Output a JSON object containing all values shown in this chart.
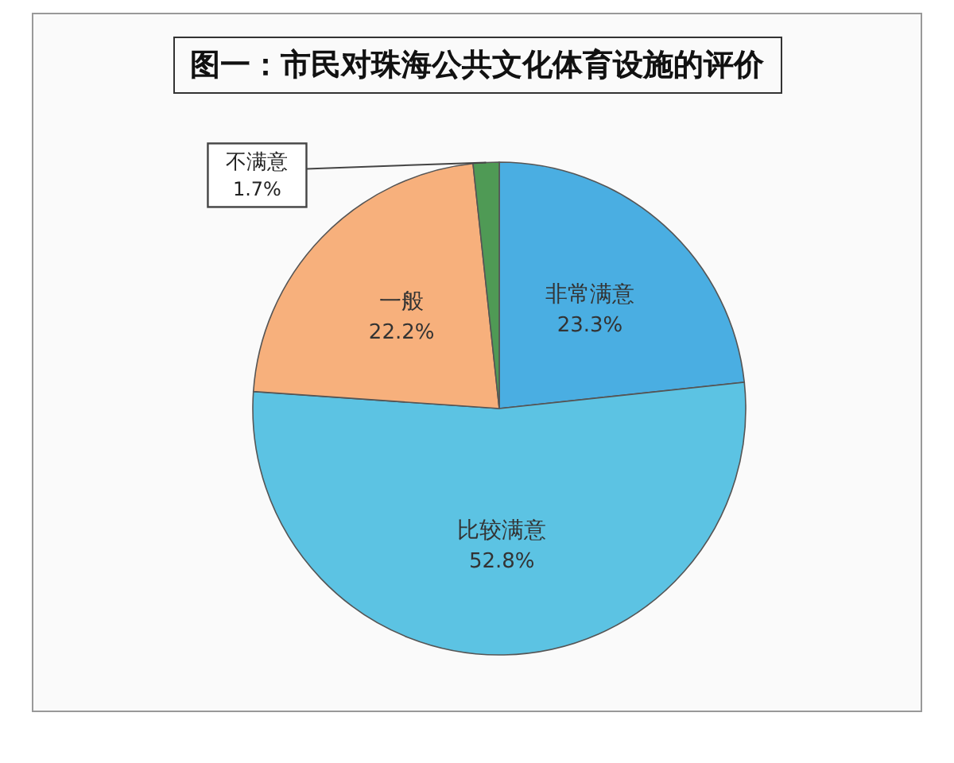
{
  "chart_data": {
    "type": "pie",
    "title": "图一：市民对珠海公共文化体育设施的评价",
    "categories": [
      "非常满意",
      "比较满意",
      "一般",
      "不满意"
    ],
    "values": [
      23.3,
      52.8,
      22.2,
      1.7
    ],
    "value_labels": [
      "23.3%",
      "52.8%",
      "22.2%",
      "1.7%"
    ],
    "colors": [
      "#4aaee2",
      "#5cc3e3",
      "#f7b07c",
      "#4f9a55"
    ],
    "legend": false
  }
}
